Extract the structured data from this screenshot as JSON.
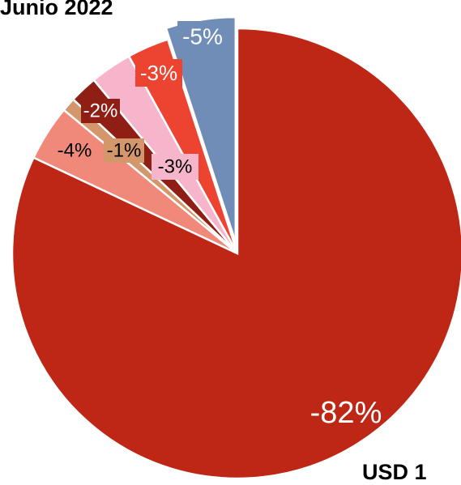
{
  "chart_data": {
    "type": "pie",
    "title": "Junio 2022",
    "footer_text": "USD 1",
    "slices": [
      {
        "label": "-82%",
        "value": 82,
        "color": "#BE2615",
        "label_bg": "",
        "label_color": "#ffffff"
      },
      {
        "label": "-4%",
        "value": 4,
        "color": "#F0897A",
        "label_bg": "#F0897A",
        "label_color": "#000000"
      },
      {
        "label": "-1%",
        "value": 1,
        "color": "#D4966B",
        "label_bg": "#D4966B",
        "label_color": "#000000"
      },
      {
        "label": "-2%",
        "value": 2,
        "color": "#8F1E14",
        "label_bg": "#8F1E14",
        "label_color": "#ffffff"
      },
      {
        "label": "-3%",
        "value": 3,
        "color": "#F6B5CB",
        "label_bg": "#F6B5CB",
        "label_color": "#000000"
      },
      {
        "label": "-3%",
        "value": 3,
        "color": "#EC4430",
        "label_bg": "#EC4430",
        "label_color": "#ffffff"
      },
      {
        "label": "-5%",
        "value": 5,
        "color": "#6F8DB7",
        "label_bg": "#6F8DB7",
        "label_color": "#ffffff",
        "exploded": true
      }
    ],
    "legend": false
  }
}
